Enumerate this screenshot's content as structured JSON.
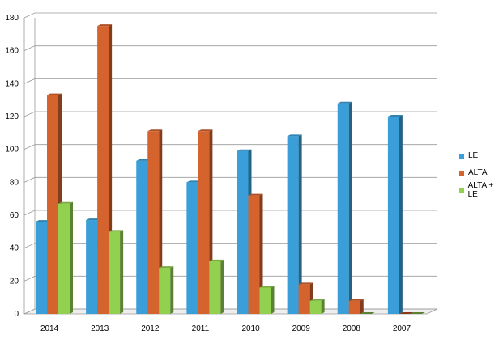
{
  "chart_data": {
    "type": "bar",
    "categories": [
      "2014",
      "2013",
      "2012",
      "2011",
      "2010",
      "2009",
      "2008",
      "2007"
    ],
    "series": [
      {
        "name": "LE",
        "values": [
          56,
          57,
          93,
          80,
          99,
          108,
          128,
          120
        ],
        "color": "#3a9fd8"
      },
      {
        "name": "ALTA",
        "values": [
          133,
          175,
          111,
          111,
          72,
          18,
          8,
          0
        ],
        "color": "#d4632e"
      },
      {
        "name": "ALTA + LE",
        "values": [
          67,
          50,
          28,
          32,
          16,
          8,
          0,
          0
        ],
        "color": "#92d050"
      }
    ],
    "ylim": [
      0,
      180
    ],
    "yticks": [
      0,
      20,
      40,
      60,
      80,
      100,
      120,
      140,
      160,
      180
    ],
    "grid": true,
    "legend_position": "right",
    "style": "3d-clustered-column"
  }
}
